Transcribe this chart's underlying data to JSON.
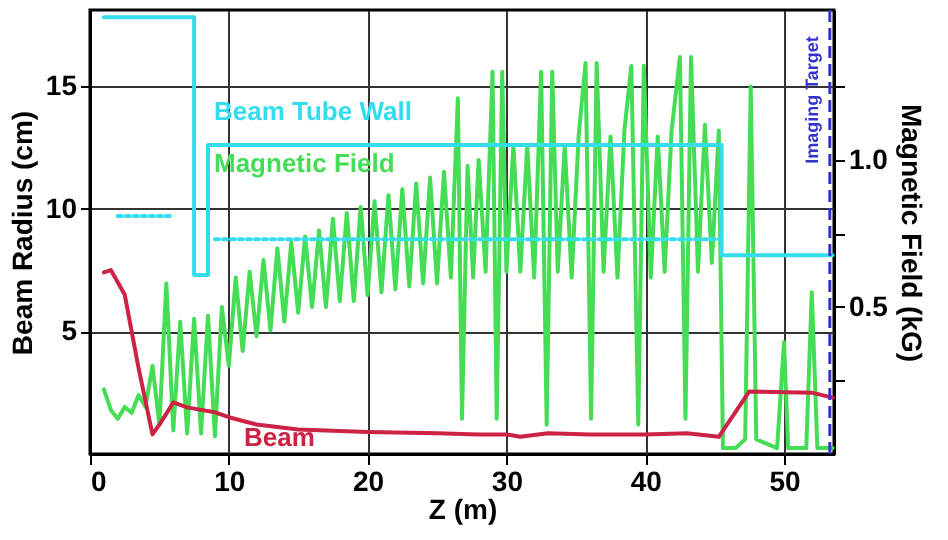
{
  "chart_data": {
    "type": "line",
    "xlabel": "Z (m)",
    "ylabel": "Beam Radius (cm)",
    "y2label": "Magnetic Field (kG)",
    "xlim": [
      0,
      53.6
    ],
    "ylim": [
      0,
      18.1
    ],
    "y2lim": [
      0,
      1.51
    ],
    "xticks": [
      0,
      10,
      20,
      30,
      40,
      50
    ],
    "yticks": [
      5,
      10,
      15
    ],
    "y2ticks": [
      {
        "value": 0.25,
        "label": null
      },
      0.5,
      {
        "value": 0.75,
        "label": null
      },
      {
        "value": 1,
        "label": "1.0"
      },
      {
        "value": 1.25,
        "label": null
      }
    ],
    "grid": true,
    "series": [
      {
        "name": "Beam Tube Wall",
        "color": "#33ddee",
        "x": [
          1,
          7.5,
          7.5,
          8.5,
          8.5,
          45.5,
          45.5,
          53.5
        ],
        "values": [
          17.8,
          17.8,
          7.3,
          7.3,
          12.6,
          12.6,
          8.1,
          8.1
        ]
      },
      {
        "color": "#33ddee",
        "line_style": "dotted",
        "x": [
          2,
          6,
          7,
          9,
          45.5
        ],
        "values": [
          9.7,
          9.7,
          null,
          8.75,
          8.75
        ]
      },
      {
        "name": "Beam",
        "color": "#cc2244",
        "x": [
          1,
          1.5,
          2.5,
          3.5,
          4.5,
          5,
          6,
          7,
          8,
          9,
          10,
          12,
          15,
          20,
          25,
          28,
          30,
          31,
          33,
          36,
          40,
          43,
          45.3,
          47.5,
          52,
          53.5
        ],
        "values": [
          7.4,
          7.5,
          6.5,
          3.5,
          0.8,
          1.2,
          2.1,
          1.9,
          1.8,
          1.7,
          1.5,
          1.2,
          1.0,
          0.9,
          0.85,
          0.8,
          0.8,
          0.7,
          0.85,
          0.8,
          0.8,
          0.85,
          0.7,
          2.55,
          2.5,
          2.3
        ]
      },
      {
        "name": "Magnetic Field",
        "color": "#44dd55",
        "axis": "y2",
        "x": [
          1,
          1.5,
          2,
          2.5,
          3,
          3.5,
          4,
          4.5,
          5,
          5.5,
          6,
          6.5,
          7,
          7.5,
          8,
          8.5,
          9,
          9.5,
          10,
          10.5,
          11,
          11.5,
          12,
          12.5,
          13,
          13.5,
          14,
          14.5,
          15,
          15.5,
          16,
          16.5,
          17,
          17.5,
          18,
          18.5,
          19,
          19.5,
          20,
          20.5,
          21,
          21.5,
          22,
          22.5,
          23,
          23.5,
          24,
          24.5,
          25,
          25.5,
          26,
          26.5,
          26.8,
          27.2,
          27.6,
          28,
          28.5,
          29,
          29.3,
          29.7,
          30,
          30.5,
          31,
          31.5,
          32,
          32.5,
          32.9,
          33.3,
          33.7,
          34.2,
          34.7,
          35.2,
          35.7,
          36.1,
          36.5,
          37,
          37.5,
          38,
          38.5,
          39,
          39.5,
          39.9,
          40.4,
          40.9,
          41.4,
          41.9,
          42.5,
          42.9,
          43.3,
          43.8,
          44.3,
          44.8,
          45.3,
          45.6,
          46.5,
          47.2,
          47.6,
          48,
          49.5,
          50,
          50.3,
          51.6,
          52,
          52.4,
          53.5
        ],
        "values": [
          0.22,
          0.15,
          0.12,
          0.16,
          0.14,
          0.2,
          0.16,
          0.3,
          0.1,
          0.58,
          0.08,
          0.45,
          0.07,
          0.46,
          0.07,
          0.47,
          0.06,
          0.5,
          0.3,
          0.6,
          0.35,
          0.62,
          0.4,
          0.66,
          0.42,
          0.7,
          0.45,
          0.72,
          0.48,
          0.74,
          0.5,
          0.76,
          0.5,
          0.8,
          0.52,
          0.82,
          0.52,
          0.84,
          0.54,
          0.86,
          0.55,
          0.88,
          0.56,
          0.9,
          0.57,
          0.92,
          0.58,
          0.94,
          0.58,
          0.96,
          0.6,
          1.21,
          0.12,
          0.98,
          0.6,
          1.0,
          0.62,
          1.3,
          0.12,
          1.3,
          0.62,
          1.05,
          0.62,
          1.05,
          0.6,
          1.3,
          0.1,
          1.3,
          0.62,
          1.05,
          0.6,
          1.08,
          1.33,
          0.12,
          1.33,
          0.62,
          1.08,
          0.6,
          1.1,
          1.32,
          0.1,
          1.32,
          0.6,
          1.08,
          0.62,
          1.1,
          1.35,
          0.12,
          1.35,
          0.62,
          1.12,
          0.65,
          1.1,
          0.02,
          0.02,
          0.05,
          1.25,
          0.05,
          0.02,
          0.38,
          0.02,
          0.02,
          0.55,
          0.02,
          0.02
        ]
      }
    ],
    "ref_lines": [
      {
        "axis": "x",
        "value": 53.3,
        "label": "Imaging Target",
        "color": "#3333cc",
        "line_style": "dashed"
      }
    ]
  }
}
